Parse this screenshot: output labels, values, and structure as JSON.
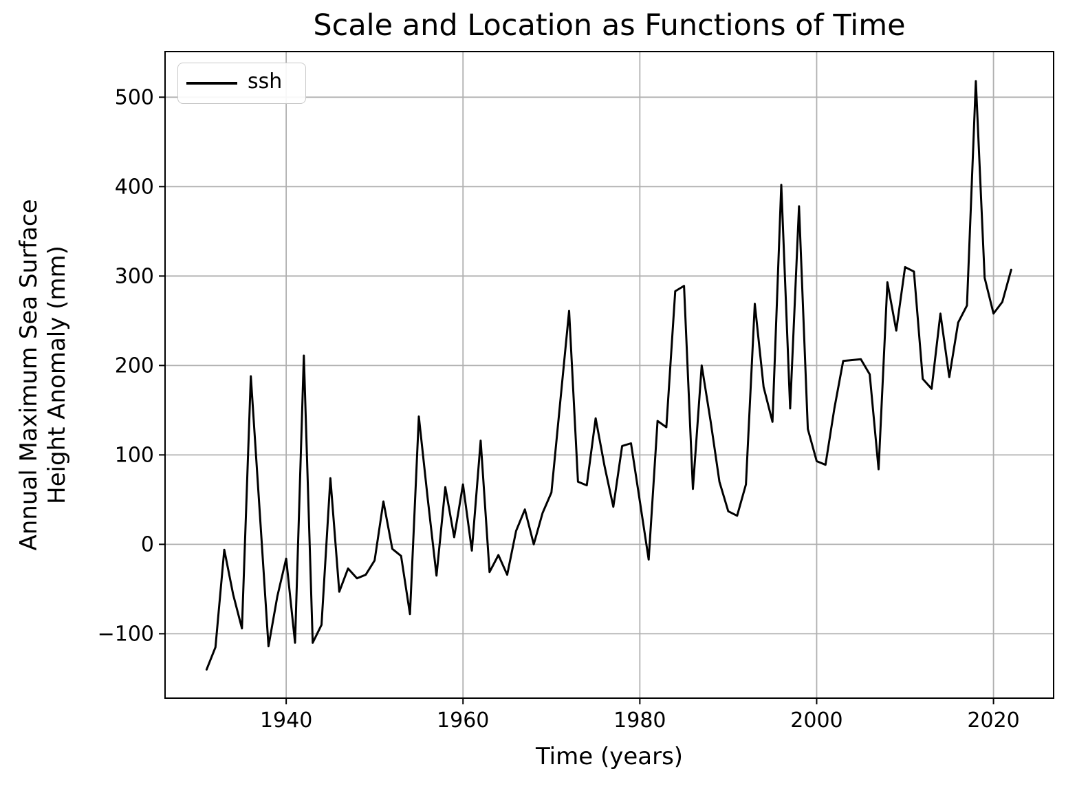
{
  "page": {
    "background": "#ffffff"
  },
  "chart_data": {
    "type": "line",
    "title": "Scale and Location as Functions of Time",
    "xlabel": "Time (years)",
    "ylabel": "Annual Maximum Sea Surface Height Anomaly (mm)",
    "ylabel_lines": [
      "Annual Maximum Sea Surface",
      "Height Anomaly (mm)"
    ],
    "legend": [
      {
        "name": "ssh",
        "color": "#000000"
      }
    ],
    "legend_position": "upper left",
    "grid": true,
    "grid_color": "#b0b0b0",
    "axis_color": "#000000",
    "line_color": "#000000",
    "line_width": 3,
    "xlim": [
      1926.3,
      2026.8
    ],
    "ylim": [
      -172,
      551
    ],
    "xticks": [
      1940,
      1960,
      1980,
      2000,
      2020
    ],
    "yticks": [
      -100,
      0,
      100,
      200,
      300,
      400,
      500
    ],
    "x": [
      1931,
      1932,
      1933,
      1934,
      1935,
      1936,
      1937,
      1938,
      1939,
      1940,
      1941,
      1942,
      1943,
      1944,
      1945,
      1946,
      1947,
      1948,
      1949,
      1950,
      1951,
      1952,
      1953,
      1954,
      1955,
      1956,
      1957,
      1958,
      1959,
      1960,
      1961,
      1962,
      1963,
      1964,
      1965,
      1966,
      1967,
      1968,
      1969,
      1970,
      1971,
      1972,
      1973,
      1974,
      1975,
      1976,
      1977,
      1978,
      1979,
      1980,
      1981,
      1982,
      1983,
      1984,
      1985,
      1986,
      1987,
      1988,
      1989,
      1990,
      1991,
      1992,
      1993,
      1994,
      1995,
      1996,
      1997,
      1998,
      1999,
      2000,
      2001,
      2002,
      2003,
      2004,
      2005,
      2006,
      2007,
      2008,
      2009,
      2010,
      2011,
      2012,
      2013,
      2014,
      2015,
      2016,
      2017,
      2018,
      2019,
      2020,
      2021,
      2022
    ],
    "values": [
      -140,
      -115,
      -6,
      -56,
      -94,
      188,
      37,
      -114,
      -58,
      -16,
      -110,
      211,
      -110,
      -90,
      74,
      -53,
      -27,
      -38,
      -34,
      -18,
      48,
      -5,
      -13,
      -78,
      143,
      52,
      -35,
      64,
      8,
      67,
      -7,
      116,
      -31,
      -12,
      -34,
      15,
      39,
      0,
      35,
      58,
      160,
      261,
      70,
      66,
      141,
      88,
      42,
      110,
      113,
      48,
      -17,
      138,
      131,
      283,
      289,
      62,
      200,
      138,
      70,
      37,
      32,
      67,
      269,
      176,
      137,
      402,
      152,
      378,
      129,
      93,
      89,
      152,
      205,
      206,
      207,
      190,
      84,
      293,
      239,
      310,
      305,
      185,
      174,
      258,
      187,
      248,
      267,
      518,
      298,
      258,
      271,
      307
    ]
  }
}
